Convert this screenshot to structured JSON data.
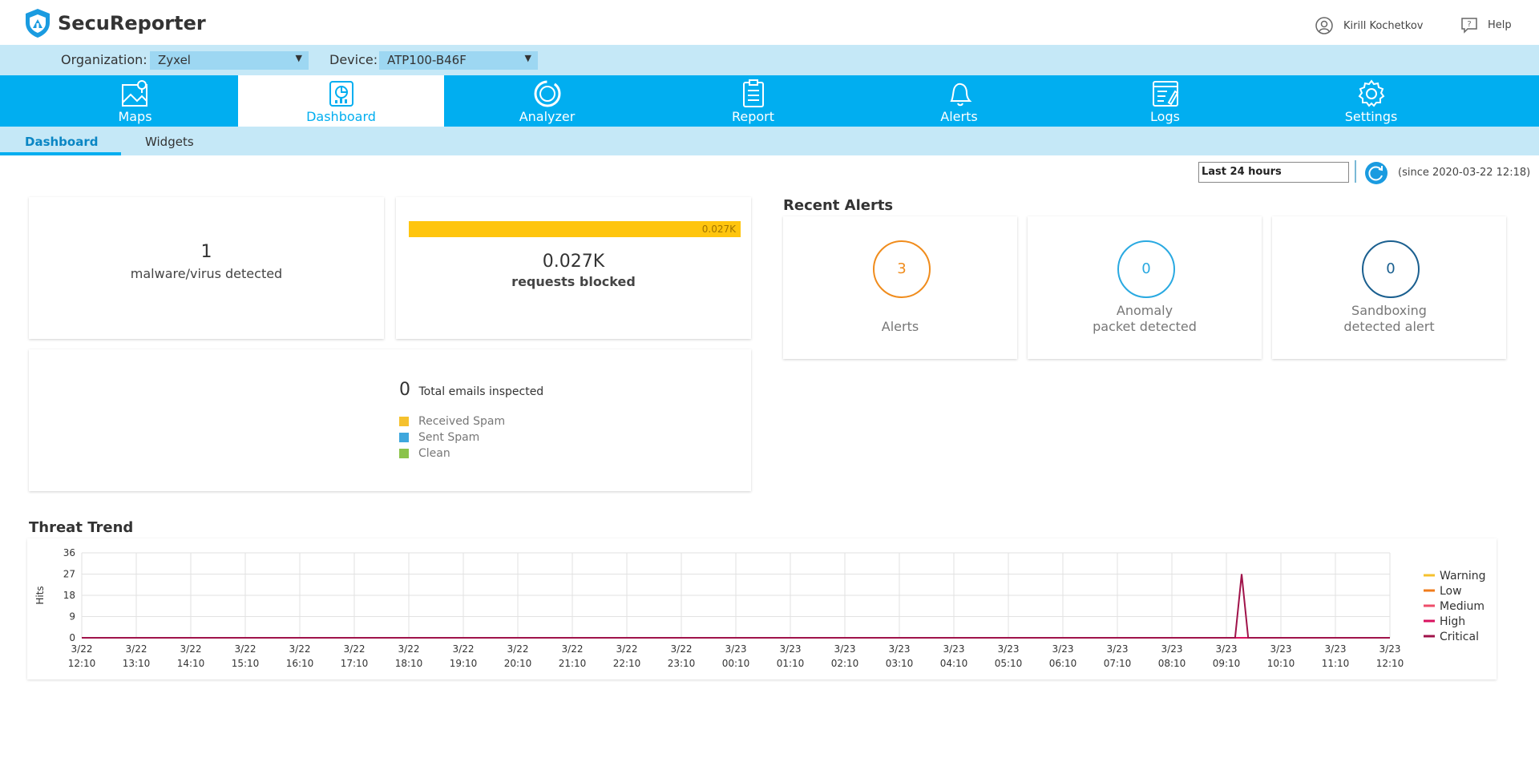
{
  "app": {
    "title": "SecuReporter",
    "user_name": "Kirill Kochetkov",
    "help_label": "Help"
  },
  "filters": {
    "organization_label": "Organization:",
    "organization_value": "Zyxel",
    "device_label": "Device:",
    "device_value": "ATP100-B46F"
  },
  "nav": [
    {
      "label": "Maps",
      "icon": "maps-icon"
    },
    {
      "label": "Dashboard",
      "icon": "dashboard-icon",
      "active": true
    },
    {
      "label": "Analyzer",
      "icon": "analyzer-icon"
    },
    {
      "label": "Report",
      "icon": "report-icon"
    },
    {
      "label": "Alerts",
      "icon": "alerts-bell-icon"
    },
    {
      "label": "Logs",
      "icon": "logs-icon"
    },
    {
      "label": "Settings",
      "icon": "settings-gear-icon"
    }
  ],
  "subnav": [
    {
      "label": "Dashboard",
      "active": true
    },
    {
      "label": "Widgets"
    }
  ],
  "time": {
    "range": "Last 24 hours",
    "since": "(since 2020-03-22 12:18)"
  },
  "widgets": {
    "malware": {
      "value": "1",
      "label": "malware/virus detected"
    },
    "blocked": {
      "value": "0.027K",
      "bar_label": "0.027K",
      "label": "requests blocked",
      "bar_fill": 1.0
    },
    "emails": {
      "total": "0",
      "total_label": "Total emails inspected",
      "legend": [
        {
          "label": "Received Spam",
          "color": "#f5c12e"
        },
        {
          "label": "Sent Spam",
          "color": "#3ea7dd"
        },
        {
          "label": "Clean",
          "color": "#8bc34a"
        }
      ]
    }
  },
  "recent_alerts": {
    "title": "Recent Alerts",
    "cards": [
      {
        "value": "3",
        "line1": "Alerts",
        "line2": "",
        "color": "#f08c1c"
      },
      {
        "value": "0",
        "line1": "Anomaly",
        "line2": "packet detected",
        "color": "#29a9e1"
      },
      {
        "value": "0",
        "line1": "Sandboxing",
        "line2": "detected alert",
        "color": "#1a5f8f"
      }
    ]
  },
  "threat_trend": {
    "title": "Threat Trend"
  },
  "chart_data": {
    "type": "line",
    "title": "Threat Trend",
    "xlabel": "",
    "ylabel": "Hits",
    "ylim": [
      0,
      36
    ],
    "yticks": [
      0,
      9,
      18,
      27,
      36
    ],
    "x": [
      "3/22 12:10",
      "3/22 13:10",
      "3/22 14:10",
      "3/22 15:10",
      "3/22 16:10",
      "3/22 17:10",
      "3/22 18:10",
      "3/22 19:10",
      "3/22 20:10",
      "3/22 21:10",
      "3/22 22:10",
      "3/22 23:10",
      "3/23 00:10",
      "3/23 01:10",
      "3/23 02:10",
      "3/23 03:10",
      "3/23 04:10",
      "3/23 05:10",
      "3/23 06:10",
      "3/23 07:10",
      "3/23 08:10",
      "3/23 09:10",
      "3/23 10:10",
      "3/23 11:10",
      "3/23 12:10"
    ],
    "grid": true,
    "legend_position": "right",
    "series": [
      {
        "name": "Warning",
        "color": "#f5c12e",
        "values": [
          0,
          0,
          0,
          0,
          0,
          0,
          0,
          0,
          0,
          0,
          0,
          0,
          0,
          0,
          0,
          0,
          0,
          0,
          0,
          0,
          0,
          0,
          0,
          0,
          0
        ]
      },
      {
        "name": "Low",
        "color": "#f07c1c",
        "values": [
          0,
          0,
          0,
          0,
          0,
          0,
          0,
          0,
          0,
          0,
          0,
          0,
          0,
          0,
          0,
          0,
          0,
          0,
          0,
          0,
          0,
          0,
          0,
          0,
          0
        ]
      },
      {
        "name": "Medium",
        "color": "#ee4d6a",
        "values": [
          0,
          0,
          0,
          0,
          0,
          0,
          0,
          0,
          0,
          0,
          0,
          0,
          0,
          0,
          0,
          0,
          0,
          0,
          0,
          0,
          0,
          0,
          0,
          0,
          0
        ]
      },
      {
        "name": "High",
        "color": "#d9125f",
        "values": [
          0,
          0,
          0,
          0,
          0,
          0,
          0,
          0,
          0,
          0,
          0,
          0,
          0,
          0,
          0,
          0,
          0,
          0,
          0,
          0,
          0,
          0,
          0,
          0,
          0
        ]
      },
      {
        "name": "Critical",
        "color": "#a0134a",
        "values": [
          0,
          0,
          0,
          0,
          0,
          0,
          0,
          0,
          0,
          0,
          0,
          0,
          0,
          0,
          0,
          0,
          0,
          0,
          0,
          0,
          0,
          0,
          0,
          0,
          0
        ]
      }
    ],
    "spike": {
      "series": "Critical",
      "x": "3/23 09:20",
      "value": 27
    }
  }
}
